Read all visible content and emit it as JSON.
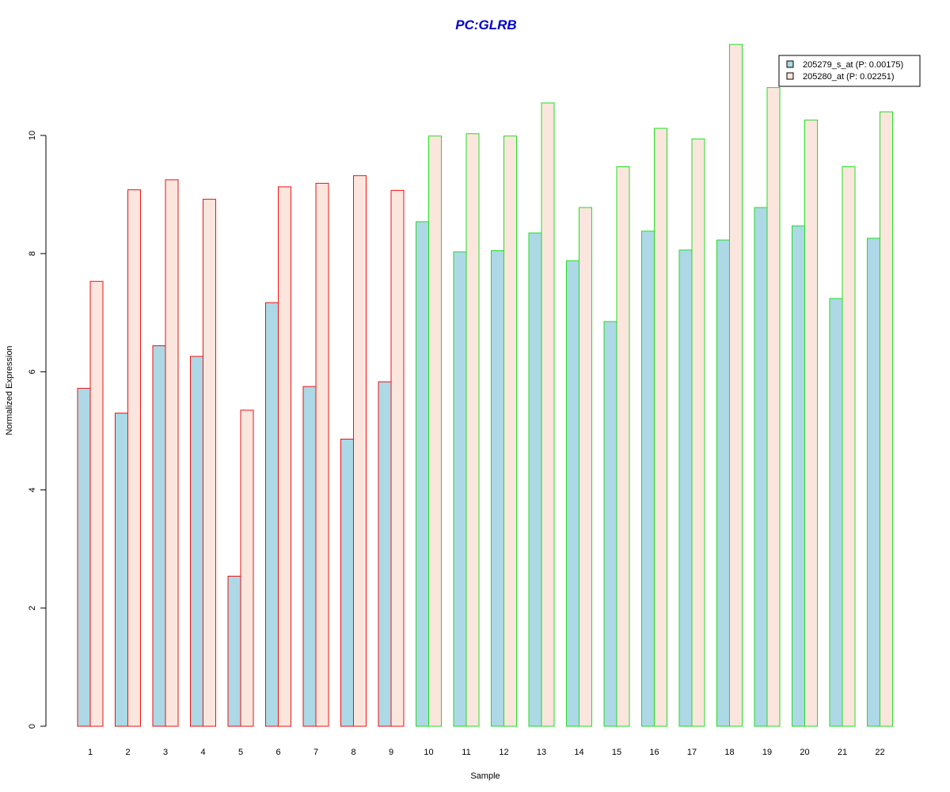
{
  "chart_data": {
    "type": "bar",
    "title": "PC:GLRB",
    "title_color": "#0000cc",
    "xlabel": "Sample",
    "ylabel": "Normalized Expression",
    "ylim": [
      0,
      11.6
    ],
    "y_ticks": [
      0,
      2,
      4,
      6,
      8,
      10
    ],
    "grid": false,
    "legend_position": "top-right",
    "categories": [
      "1",
      "2",
      "3",
      "4",
      "5",
      "6",
      "7",
      "8",
      "9",
      "10",
      "11",
      "12",
      "13",
      "14",
      "15",
      "16",
      "17",
      "18",
      "19",
      "20",
      "21",
      "22"
    ],
    "group_outline_colors": [
      "#ee1111",
      "#ee1111",
      "#ee1111",
      "#ee1111",
      "#ee1111",
      "#ee1111",
      "#ee1111",
      "#ee1111",
      "#ee1111",
      "#22dd22",
      "#22dd22",
      "#22dd22",
      "#22dd22",
      "#22dd22",
      "#22dd22",
      "#22dd22",
      "#22dd22",
      "#22dd22",
      "#22dd22",
      "#22dd22",
      "#22dd22",
      "#22dd22"
    ],
    "series": [
      {
        "name": "205279_s_at (P: 0.00175)",
        "fill": "#add8e6",
        "values": [
          5.72,
          5.3,
          6.44,
          6.26,
          2.54,
          7.17,
          5.75,
          4.86,
          5.83,
          8.54,
          8.03,
          8.05,
          8.35,
          7.88,
          6.85,
          8.38,
          8.06,
          8.23,
          8.78,
          8.47,
          7.24,
          8.26
        ]
      },
      {
        "name": "205280_at (P: 0.02251)",
        "fill": "#fbe6de",
        "values": [
          7.53,
          9.08,
          9.25,
          8.92,
          5.35,
          9.13,
          9.19,
          9.32,
          9.07,
          9.99,
          10.03,
          9.99,
          10.55,
          8.78,
          9.47,
          10.12,
          9.94,
          11.54,
          10.81,
          10.26,
          9.47,
          10.4
        ]
      }
    ]
  }
}
